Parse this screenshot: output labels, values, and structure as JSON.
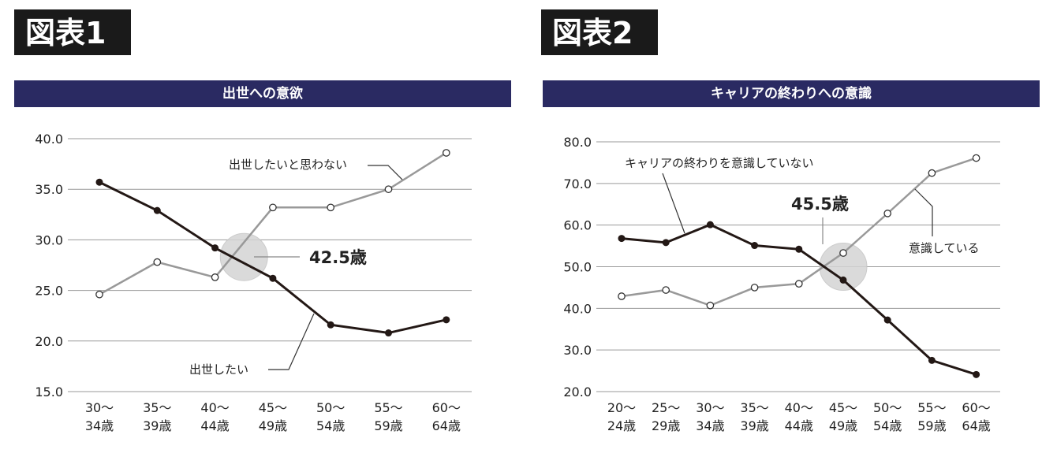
{
  "figures": [
    {
      "tag": "図表1",
      "title": "出世への意欲"
    },
    {
      "tag": "図表2",
      "title": "キャリアの終わりへの意識"
    }
  ],
  "chart_data": [
    {
      "type": "line",
      "title": "出世への意欲",
      "categories": [
        "30〜\n34歳",
        "35〜\n39歳",
        "40〜\n44歳",
        "45〜\n49歳",
        "50〜\n54歳",
        "55〜\n59歳",
        "60〜\n64歳"
      ],
      "yticks": [
        "40.0",
        "35.0",
        "30.0",
        "25.0",
        "20.0",
        "15.0"
      ],
      "ylim": [
        15,
        40
      ],
      "grid": true,
      "series": [
        {
          "name": "出世したい",
          "values": [
            35.7,
            32.9,
            29.2,
            26.2,
            21.6,
            20.8,
            22.1
          ],
          "color": "#231815",
          "marker": "filled"
        },
        {
          "name": "出世したいと思わない",
          "values": [
            24.6,
            27.8,
            26.3,
            33.2,
            33.2,
            35.0,
            38.6
          ],
          "color": "#999999",
          "marker": "open"
        }
      ],
      "callout": {
        "label": "42.5歳",
        "x": 2.5,
        "y": 28.3
      },
      "xlabel": "",
      "ylabel": ""
    },
    {
      "type": "line",
      "title": "キャリアの終わりへの意識",
      "categories": [
        "20〜\n24歳",
        "25〜\n29歳",
        "30〜\n34歳",
        "35〜\n39歳",
        "40〜\n44歳",
        "45〜\n49歳",
        "50〜\n54歳",
        "55〜\n59歳",
        "60〜\n64歳"
      ],
      "yticks": [
        "80.0",
        "70.0",
        "60.0",
        "50.0",
        "40.0",
        "30.0",
        "20.0"
      ],
      "ylim": [
        20,
        80
      ],
      "grid": true,
      "series": [
        {
          "name": "キャリアの終わりを意識していない",
          "values": [
            56.8,
            55.8,
            60.1,
            55.1,
            54.2,
            46.8,
            37.2,
            27.5,
            24.1
          ],
          "color": "#231815",
          "marker": "filled"
        },
        {
          "name": "意識している",
          "values": [
            42.9,
            44.4,
            40.7,
            45.0,
            45.9,
            53.3,
            62.8,
            72.5,
            76.1
          ],
          "color": "#999999",
          "marker": "open"
        }
      ],
      "callout": {
        "label": "45.5歳",
        "x": 5.0,
        "y": 50.0
      },
      "xlabel": "",
      "ylabel": ""
    }
  ]
}
